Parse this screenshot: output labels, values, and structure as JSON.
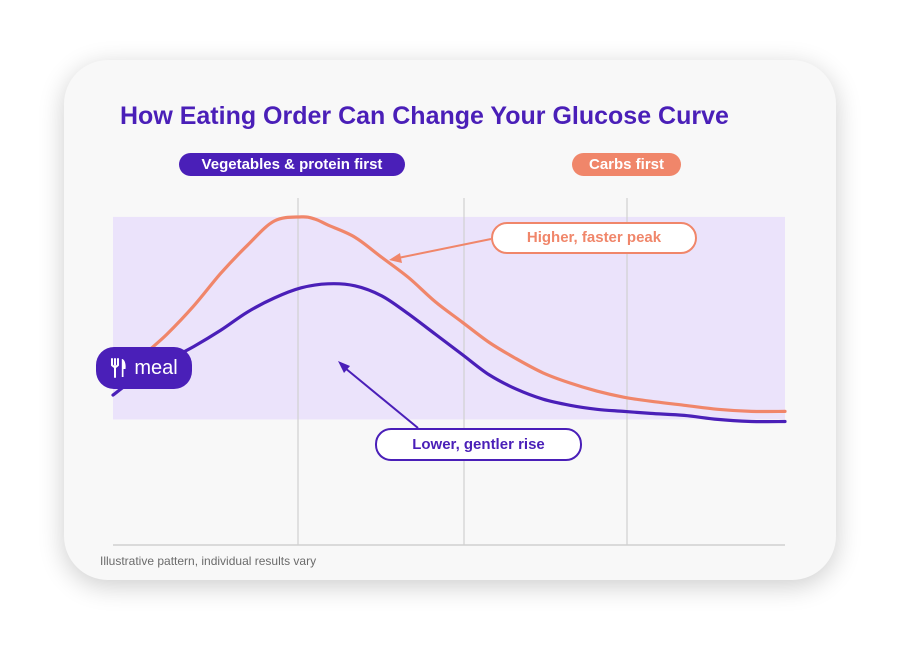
{
  "title": "How Eating Order Can Change Your Glucose Curve",
  "legend": {
    "veg_first": "Vegetables & protein first",
    "carbs_first": "Carbs first"
  },
  "annotations": {
    "higher_peak": "Higher, faster peak",
    "lower_rise": "Lower, gentler rise"
  },
  "meal_marker": {
    "label": "meal",
    "icon": "utensils-icon"
  },
  "footnote": "Illustrative pattern, individual results vary",
  "colors": {
    "veg_first": "#4a1fb8",
    "carbs_first": "#f0866a",
    "target_band": "#ebe3fb",
    "gridline": "#d0d0d0"
  },
  "chart_data": {
    "type": "line",
    "title": "How Eating Order Can Change Your Glucose Curve",
    "xlabel": "",
    "ylabel": "",
    "xlim": [
      0,
      100
    ],
    "ylim": [
      0,
      100
    ],
    "grid": "vertical",
    "legend_placement": "top",
    "shaded_band": [
      31,
      81
    ],
    "series": [
      {
        "name": "Carbs first",
        "x": [
          0,
          4,
          8,
          12,
          16,
          20,
          24,
          28,
          30,
          32,
          36,
          40,
          44,
          48,
          52,
          56,
          60,
          64,
          68,
          72,
          76,
          80,
          85,
          90,
          95,
          100
        ],
        "y": [
          39,
          46,
          52,
          59,
          67,
          74,
          80,
          81,
          80.5,
          79,
          76,
          71,
          66,
          60,
          55,
          50,
          46,
          42.5,
          40,
          38,
          36.5,
          35.5,
          34.5,
          33.5,
          33,
          33
        ]
      },
      {
        "name": "Vegetables & protein first",
        "x": [
          0,
          4,
          8,
          12,
          16,
          20,
          24,
          28,
          32,
          36,
          40,
          44,
          48,
          52,
          56,
          60,
          64,
          68,
          72,
          76,
          80,
          85,
          90,
          95,
          100
        ],
        "y": [
          37,
          42,
          45.5,
          49,
          53,
          57.5,
          61,
          63.5,
          64.5,
          64,
          61.5,
          57,
          52,
          47,
          42,
          38.5,
          36,
          34.5,
          33.5,
          33,
          32.5,
          32,
          31,
          30.5,
          30.5
        ]
      }
    ]
  }
}
